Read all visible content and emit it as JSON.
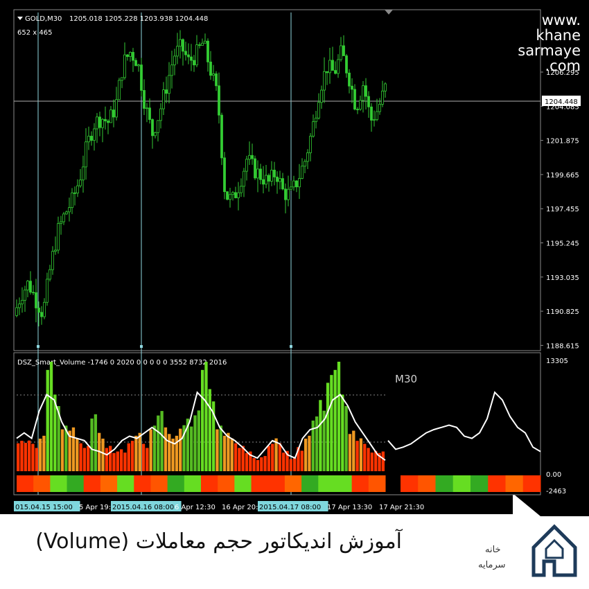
{
  "header": {
    "symbol_title": "GOLD,M30",
    "ohlc": "1205.018 1205.228 1203.938 1204.448",
    "size_label": "652 x 465"
  },
  "watermark": {
    "line1": "www.",
    "line2": "khane",
    "line3": "sarmaye",
    "line4": ".com"
  },
  "price_axis": {
    "ticks": [
      "1206.295",
      "1204.085",
      "1201.875",
      "1199.665",
      "1197.455",
      "1195.245",
      "1193.035",
      "1190.825",
      "1188.615"
    ],
    "current_price": "1204.448"
  },
  "indicator": {
    "title": "DSZ_Smart_Volume -1746 0 2020 0 0 0 0 0 3552 8732 2016",
    "timeframe_label": "M30",
    "axis_ticks": [
      "13305",
      "0.00",
      "-2463"
    ]
  },
  "time_axis": {
    "labels": [
      {
        "text": "015.04.15 15:00",
        "highlight": true
      },
      {
        "text": "5 Apr 19:30",
        "highlight": false
      },
      {
        "text": "2015.04.16 08:00",
        "highlight": true
      },
      {
        "text": "6 Apr 12:30",
        "highlight": false
      },
      {
        "text": "16 Apr 20:",
        "highlight": false
      },
      {
        "text": "2015.04.17 08:00",
        "highlight": true
      },
      {
        "text": "17 Apr 13:30",
        "highlight": false
      },
      {
        "text": "17 Apr 21:30",
        "highlight": false
      }
    ]
  },
  "caption": {
    "text": "آموزش اندیکاتور حجم معاملات (Volume)"
  },
  "logo": {
    "word1": "خانه",
    "word2": "سرمایه"
  },
  "colors": {
    "bull": "#33cc33",
    "bear": "#ff3300",
    "grid": "#8fd8e0",
    "background": "#000000"
  },
  "chart_data": {
    "type": "candlestick",
    "title": "GOLD,M30",
    "ylim": [
      1188.615,
      1208.5
    ],
    "close_path": [
      1190.5,
      1191.8,
      1192.5,
      1191.5,
      1190.6,
      1193.4,
      1195.6,
      1196.7,
      1197.5,
      1198.8,
      1200.8,
      1202.2,
      1202.6,
      1202.3,
      1203.3,
      1205.9,
      1206.6,
      1206.0,
      1203.4,
      1201.6,
      1202.9,
      1204.6,
      1206.4,
      1206.9,
      1206.0,
      1206.4,
      1207.2,
      1205.5,
      1203.8,
      1197.9,
      1197.5,
      1198.6,
      1200.1,
      1199.4,
      1199.0,
      1198.6,
      1199.3,
      1198.0,
      1197.9,
      1198.8,
      1200.0,
      1201.9,
      1204.4,
      1205.7,
      1205.3,
      1206.6,
      1205.1,
      1203.2,
      1204.7,
      1202.4,
      1203.1,
      1204.4
    ],
    "volume_histogram": [
      0.3,
      0.28,
      0.25,
      0.35,
      1.0,
      0.7,
      0.45,
      0.4,
      0.3,
      0.25,
      0.52,
      0.35,
      0.25,
      0.18,
      0.2,
      0.3,
      0.35,
      0.25,
      0.45,
      0.55,
      0.4,
      0.35,
      0.42,
      0.48,
      0.6,
      1.0,
      0.75,
      0.45,
      0.35,
      0.3,
      0.25,
      0.18,
      0.12,
      0.15,
      0.25,
      0.3,
      0.2,
      0.12,
      0.22,
      0.35,
      0.5,
      0.65,
      0.95,
      1.0,
      0.7,
      0.4,
      0.3,
      0.25,
      0.2,
      0.18
    ],
    "volume_line": [
      0.3,
      0.35,
      0.3,
      0.55,
      0.7,
      0.65,
      0.45,
      0.32,
      0.3,
      0.28,
      0.2,
      0.18,
      0.15,
      0.2,
      0.28,
      0.32,
      0.3,
      0.35,
      0.4,
      0.35,
      0.28,
      0.25,
      0.3,
      0.45,
      0.72,
      0.65,
      0.55,
      0.4,
      0.32,
      0.28,
      0.22,
      0.15,
      0.12,
      0.2,
      0.28,
      0.25,
      0.15,
      0.12,
      0.3,
      0.38,
      0.4,
      0.48,
      0.65,
      0.7,
      0.6,
      0.45,
      0.35,
      0.25,
      0.15,
      0.1
    ],
    "projection_line": [
      0.28,
      0.2,
      0.22,
      0.25,
      0.3,
      0.35,
      0.38,
      0.4,
      0.42,
      0.4,
      0.32,
      0.3,
      0.35,
      0.48,
      0.72,
      0.65,
      0.5,
      0.4,
      0.35,
      0.22,
      0.18
    ]
  }
}
